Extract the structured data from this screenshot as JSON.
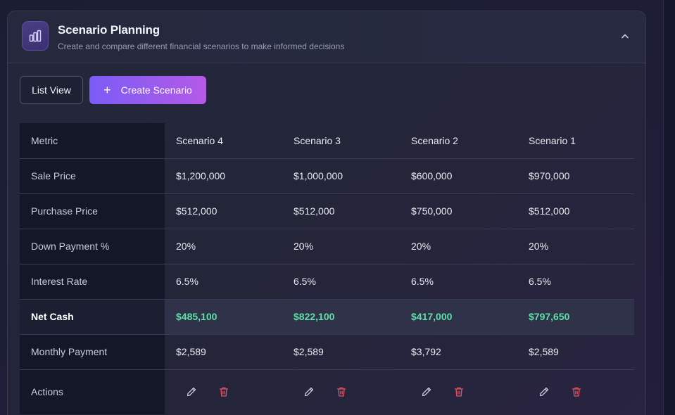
{
  "header": {
    "title": "Scenario Planning",
    "subtitle": "Create and compare different financial scenarios to make informed decisions",
    "icon": "bar-chart-icon",
    "collapse_icon": "chevron-up-icon"
  },
  "toolbar": {
    "list_view_label": "List View",
    "create_label": "Create Scenario",
    "create_icon": "plus-icon"
  },
  "table": {
    "columns": [
      "Metric",
      "Scenario 4",
      "Scenario 3",
      "Scenario 2",
      "Scenario 1"
    ],
    "rows": [
      {
        "metric": "Sale Price",
        "values": [
          "$1,200,000",
          "$1,000,000",
          "$600,000",
          "$970,000"
        ]
      },
      {
        "metric": "Purchase Price",
        "values": [
          "$512,000",
          "$512,000",
          "$750,000",
          "$512,000"
        ]
      },
      {
        "metric": "Down Payment %",
        "values": [
          "20%",
          "20%",
          "20%",
          "20%"
        ]
      },
      {
        "metric": "Interest Rate",
        "values": [
          "6.5%",
          "6.5%",
          "6.5%",
          "6.5%"
        ]
      },
      {
        "metric": "Net Cash",
        "values": [
          "$485,100",
          "$822,100",
          "$417,000",
          "$797,650"
        ]
      },
      {
        "metric": "Monthly Payment",
        "values": [
          "$2,589",
          "$2,589",
          "$3,792",
          "$2,589"
        ]
      }
    ],
    "actions_label": "Actions",
    "action_icons": [
      "pencil-icon",
      "trash-icon"
    ]
  },
  "colors": {
    "accent_gradient_start": "#7a5cf6",
    "accent_gradient_end": "#b45ae7",
    "positive": "#5fe0a8",
    "delete": "#e25563"
  }
}
